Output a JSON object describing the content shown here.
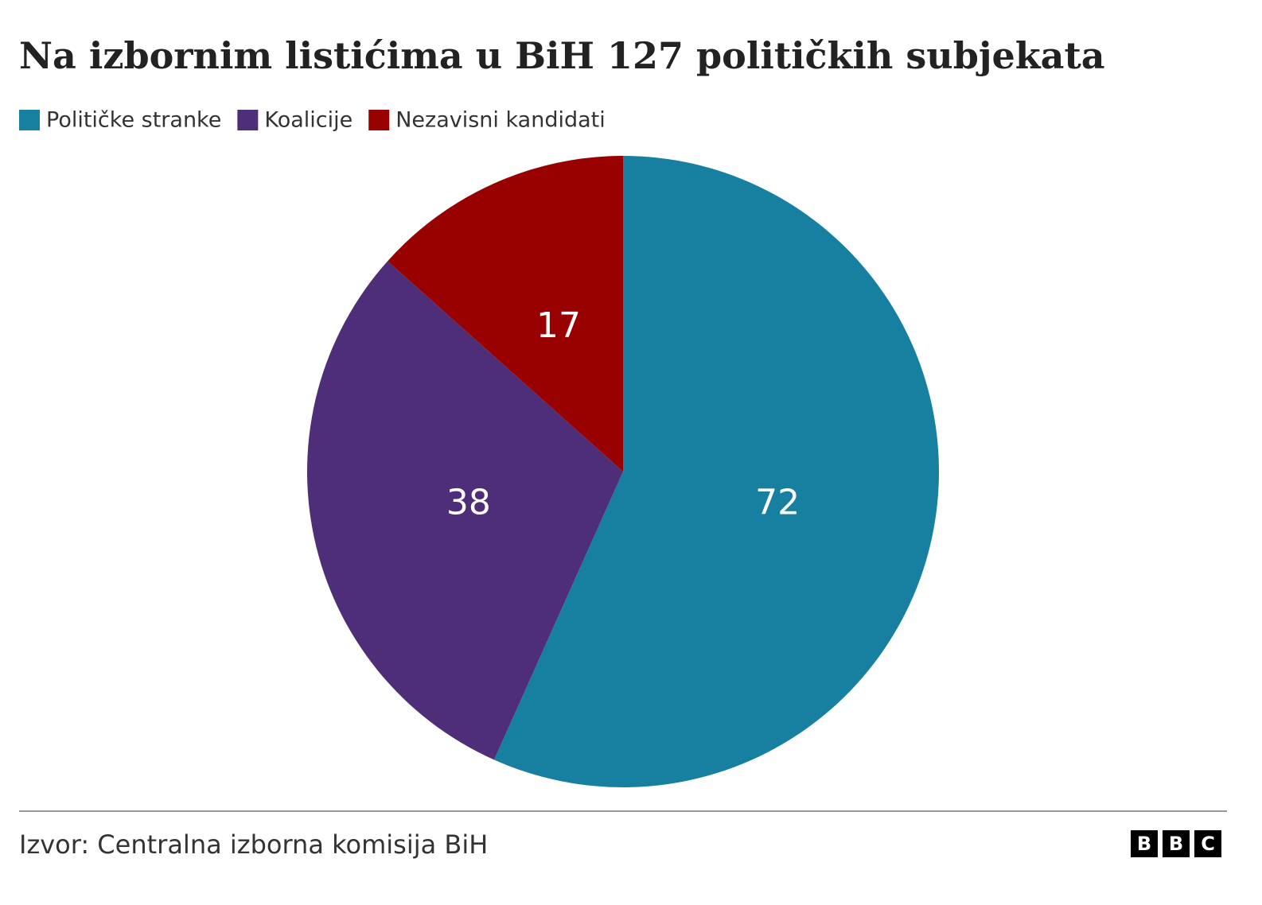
{
  "chart_data": {
    "type": "pie",
    "title": "Na izbornim listićima u BiH 127 političkih subjekata",
    "categories": [
      "Političke stranke",
      "Koalicije",
      "Nezavisni kandidati"
    ],
    "values": [
      72,
      38,
      17
    ],
    "colors": [
      "#1780a1",
      "#4e2d79",
      "#990000"
    ],
    "source": "Izvor: Centralna izborna komisija BiH",
    "logo": [
      "B",
      "B",
      "C"
    ]
  }
}
